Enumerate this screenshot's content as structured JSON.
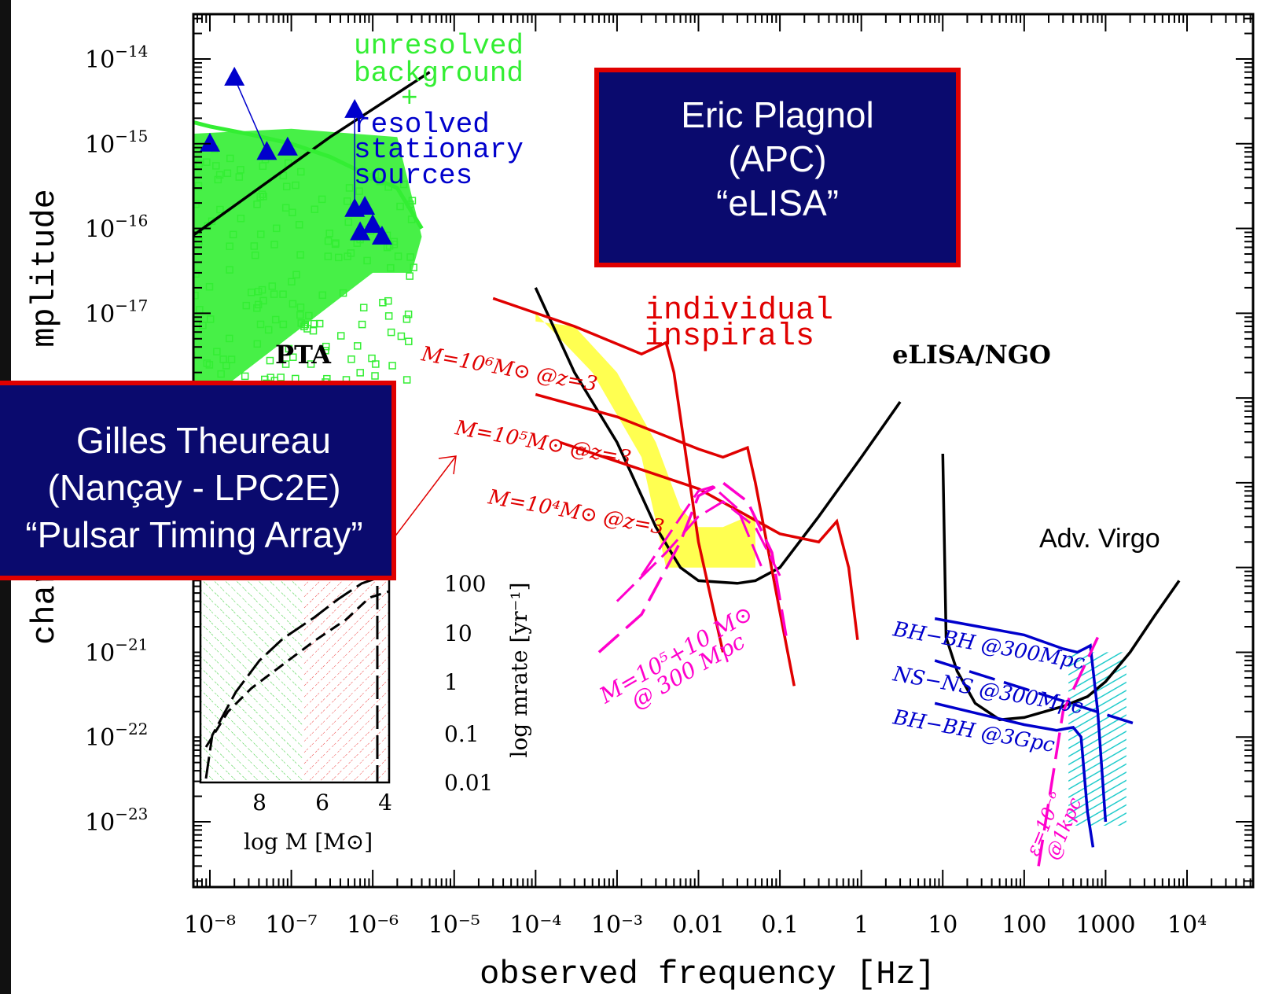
{
  "chart_data": {
    "type": "line",
    "xscale": "log",
    "yscale": "log",
    "xlim": [
      1e-09,
      20000
    ],
    "ylim": [
      3e-24,
      3e-14
    ],
    "xlabel": "observed frequency [Hz]",
    "ylabel": "characteristic amplitude",
    "ylabel_visible": "chara          mplitude",
    "x_ticks": [
      "10⁻⁸",
      "10⁻⁷",
      "10⁻⁶",
      "10⁻⁵",
      "10⁻⁴",
      "10⁻³",
      "0.01",
      "0.1",
      "1",
      "10",
      "100",
      "1000",
      "10⁴"
    ],
    "x_tick_values": [
      1e-08,
      1e-07,
      1e-06,
      1e-05,
      0.0001,
      0.001,
      0.01,
      0.1,
      1,
      10,
      100,
      1000,
      10000
    ],
    "y_ticks": [
      {
        "base": "10",
        "exp": "−14",
        "value": 1e-14
      },
      {
        "base": "10",
        "exp": "−15",
        "value": 1e-15
      },
      {
        "base": "10",
        "exp": "−16",
        "value": 1e-16
      },
      {
        "base": "10",
        "exp": "−17",
        "value": 1e-17
      },
      {
        "base": "10",
        "exp": "−21",
        "value": 1e-21
      },
      {
        "base": "10",
        "exp": "−22",
        "value": 1e-22
      },
      {
        "base": "10",
        "exp": "−23",
        "value": 1e-23
      }
    ],
    "series": [
      {
        "name": "PTA",
        "color": "#000000",
        "dash": "solid",
        "points": [
          [
            1e-09,
            5e-17
          ],
          [
            3e-09,
            5e-17
          ],
          [
            3e-07,
            1.2e-15
          ],
          [
            5e-06,
            7e-15
          ]
        ]
      },
      {
        "name": "eLISA/NGO",
        "color": "#000000",
        "dash": "solid",
        "points": [
          [
            0.0001,
            2e-17
          ],
          [
            0.0003,
            2e-18
          ],
          [
            0.001,
            3e-19
          ],
          [
            0.003,
            3e-20
          ],
          [
            0.006,
            1e-20
          ],
          [
            0.01,
            7e-21
          ],
          [
            0.03,
            6.5e-21
          ],
          [
            0.05,
            7e-21
          ],
          [
            0.1,
            1e-20
          ],
          [
            0.3,
            4e-20
          ],
          [
            1,
            2e-19
          ],
          [
            3,
            9e-19
          ]
        ]
      },
      {
        "name": "Adv. Virgo",
        "color": "#000000",
        "dash": "solid",
        "points": [
          [
            10,
            2.2e-19
          ],
          [
            11,
            1.5e-21
          ],
          [
            15,
            6e-22
          ],
          [
            25,
            2.5e-22
          ],
          [
            50,
            1.6e-22
          ],
          [
            100,
            1.7e-22
          ],
          [
            300,
            2.3e-22
          ],
          [
            600,
            3e-22
          ],
          [
            1000,
            4.5e-22
          ],
          [
            2000,
            1e-21
          ],
          [
            4000,
            2.7e-21
          ],
          [
            8000,
            7e-21
          ]
        ]
      },
      {
        "name": "M=10⁶M⊙ @z=3",
        "color": "#e00000",
        "dash": "solid",
        "points": [
          [
            3e-05,
            1.5e-17
          ],
          [
            0.0003,
            7e-18
          ],
          [
            0.002,
            3.3e-18
          ],
          [
            0.004,
            4.5e-18
          ],
          [
            0.005,
            2e-18
          ],
          [
            0.01,
            2e-20
          ],
          [
            0.02,
            1e-21
          ]
        ]
      },
      {
        "name": "M=10⁵M⊙ @z=3",
        "color": "#e00000",
        "dash": "solid",
        "points": [
          [
            0.0001,
            1.1e-18
          ],
          [
            0.001,
            6e-19
          ],
          [
            0.01,
            2.5e-19
          ],
          [
            0.02,
            2e-19
          ],
          [
            0.04,
            2.6e-19
          ],
          [
            0.05,
            1e-19
          ],
          [
            0.1,
            3e-21
          ],
          [
            0.15,
            4e-22
          ]
        ]
      },
      {
        "name": "M=10⁴M⊙ @z=3",
        "color": "#e00000",
        "dash": "solid",
        "points": [
          [
            0.0002,
            3e-19
          ],
          [
            0.01,
            8.5e-20
          ],
          [
            0.1,
            2.5e-20
          ],
          [
            0.3,
            2e-20
          ],
          [
            0.5,
            3.5e-20
          ],
          [
            0.7,
            1e-20
          ],
          [
            0.9,
            1.4e-21
          ]
        ]
      },
      {
        "name": "BH-BH @300Mpc",
        "color": "#0000cc",
        "dash": "solid",
        "points": [
          [
            8,
            2.5e-21
          ],
          [
            100,
            1.6e-21
          ],
          [
            300,
            1.1e-21
          ],
          [
            450,
            1e-21
          ],
          [
            550,
            1.1e-21
          ],
          [
            650,
            1.2e-21
          ],
          [
            800,
            2e-22
          ],
          [
            1000,
            1e-23
          ]
        ]
      },
      {
        "name": "NS-NS @300Mpc",
        "color": "#0000cc",
        "dash": "dashed",
        "points": [
          [
            8,
            8e-22
          ],
          [
            2500,
            1.4e-22
          ]
        ]
      },
      {
        "name": "BH-BH @3Gpc",
        "color": "#0000cc",
        "dash": "solid",
        "points": [
          [
            8,
            2.5e-22
          ],
          [
            100,
            1.4e-22
          ],
          [
            250,
            1.2e-22
          ],
          [
            400,
            1.3e-22
          ],
          [
            500,
            1e-22
          ],
          [
            600,
            1.3e-23
          ],
          [
            700,
            5e-24
          ]
        ]
      },
      {
        "name": "ε=10⁻⁶ @1kpc",
        "color": "#ff00cc",
        "dash": "dashed",
        "points": [
          [
            150,
            3e-24
          ],
          [
            300,
            2e-22
          ],
          [
            800,
            1.5e-21
          ]
        ]
      },
      {
        "name": "M=10⁵+10 M⊙ @ 300 Mpc",
        "color": "#ff00cc",
        "dash": "dashed",
        "points": [
          [
            0.0006,
            1e-21
          ],
          [
            0.002,
            2.8e-21
          ],
          [
            0.006,
            2e-20
          ],
          [
            0.01,
            7e-20
          ],
          [
            0.02,
            1e-19
          ],
          [
            0.04,
            6e-20
          ],
          [
            0.08,
            1.5e-20
          ],
          [
            0.12,
            1.5e-21
          ]
        ]
      },
      {
        "name": "unresolved background",
        "color": "#33ee33",
        "dash": "solid",
        "points": [
          [
            1e-09,
            3e-15
          ],
          [
            1.5e-09,
            2.5e-15
          ],
          [
            4e-09,
            2e-15
          ],
          [
            1e-08,
            1.6e-15
          ],
          [
            3e-08,
            1.3e-15
          ],
          [
            1e-07,
            1e-15
          ],
          [
            3e-07,
            7e-16
          ],
          [
            1e-06,
            4e-16
          ],
          [
            2e-06,
            3e-16
          ],
          [
            4e-06,
            1e-16
          ]
        ]
      }
    ],
    "triangles": [
      [
        1e-08,
        1e-15
      ],
      [
        2e-08,
        6e-15
      ],
      [
        5e-08,
        8e-16
      ],
      [
        9e-08,
        9e-16
      ],
      [
        6e-07,
        2.5e-15
      ],
      [
        6e-07,
        1.7e-16
      ],
      [
        8e-07,
        1.8e-16
      ],
      [
        7e-07,
        9e-17
      ],
      [
        1e-06,
        1.1e-16
      ],
      [
        1.3e-06,
        8e-17
      ]
    ],
    "inset": {
      "xlabel": "log M [M⊙]",
      "ylabel": "log mrate [yr⁻¹]",
      "x_ticks": [
        "8",
        "6",
        "4"
      ],
      "y_ticks": [
        "100",
        "10",
        "1",
        "0.1",
        "0.01"
      ]
    },
    "annotations": {
      "pta_label": "PTA",
      "elisa_label": "eLISA/NGO",
      "virgo_label": "Adv. Virgo",
      "unresolved_1": "unresolved",
      "unresolved_2": "background",
      "plus": "+",
      "resolved_1": "resolved",
      "resolved_2": "stationary",
      "resolved_3": "sources",
      "inspirals_1": "individual",
      "inspirals_2": "inspirals",
      "m6": "M=10⁶M⊙ @z=3",
      "m5": "M=10⁵M⊙ @z=3",
      "m4": "M=10⁴M⊙ @z=3",
      "emri_1": "M=10⁵+10 M⊙",
      "emri_2": "@ 300 Mpc",
      "bhbh300": "BH−BH @300Mpc",
      "nsns300": "NS−NS @300Mpc",
      "bhbh3g": "BH−BH @3Gpc",
      "eps_1": "ε=10⁻⁶",
      "eps_2": "@1kpc"
    }
  },
  "overlays": {
    "plagnol": {
      "line1": "Eric Plagnol",
      "line2": "(APC)",
      "line3": "“eLISA”"
    },
    "theureau": {
      "line1": "Gilles Theureau",
      "line2": "(Nançay - LPC2E)",
      "line3": "“Pulsar Timing Array”"
    }
  },
  "colors": {
    "box_bg": "#0a0a6e",
    "box_border": "#e00000",
    "green": "#33ee33",
    "blue": "#0000cc",
    "red": "#e00000",
    "magenta": "#ff00cc",
    "yellow": "#ffff33",
    "cyan": "#33dddd"
  }
}
